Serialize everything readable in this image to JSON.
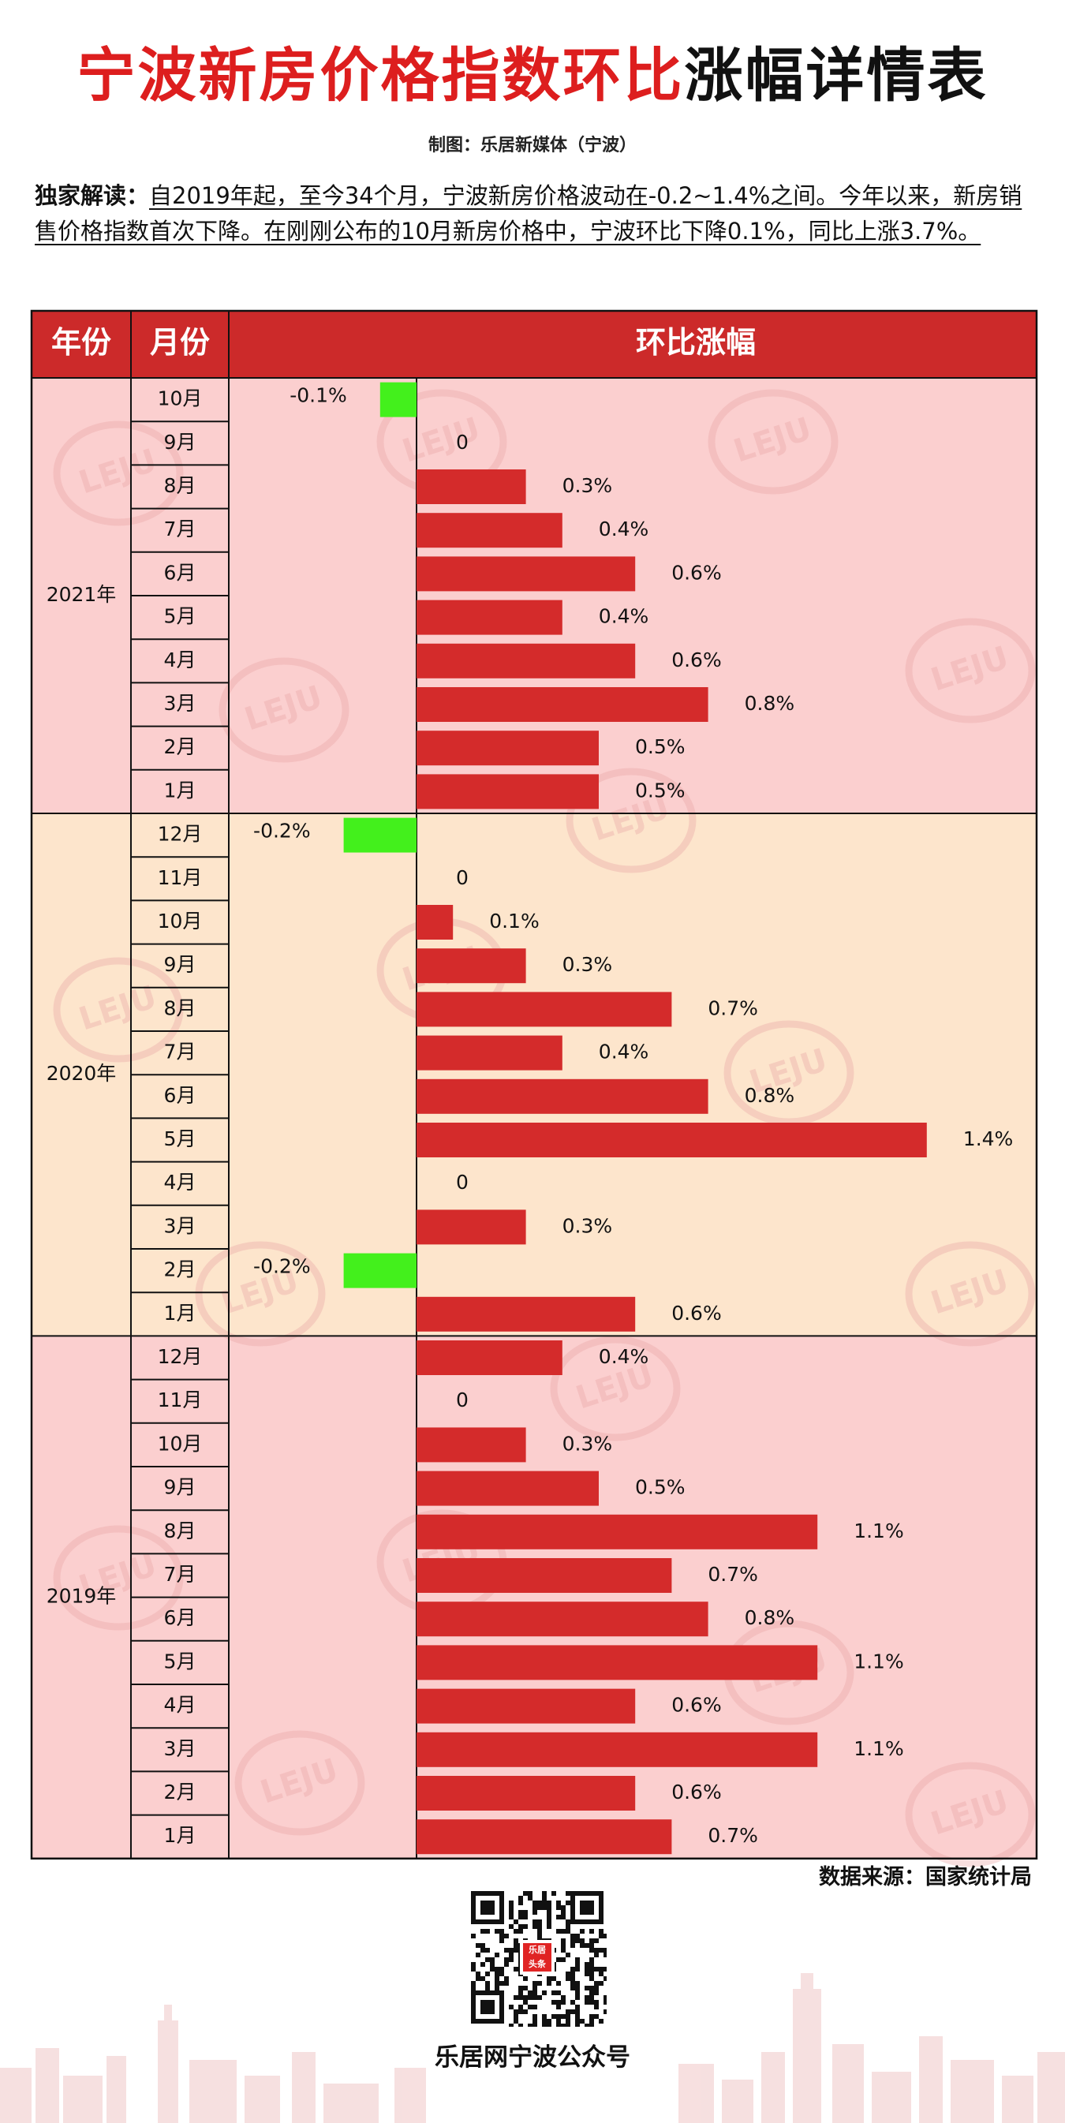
{
  "header": {
    "title_red": "宁波新房价格指数环比",
    "title_black": "涨幅详情表",
    "credit": "制图：乐居新媒体（宁波）"
  },
  "intro": {
    "label": "独家解读：",
    "text": "自2019年起，至今34个月，宁波新房价格波动在-0.2~1.4%之间。今年以来，新房销售价格指数首次下降。在刚刚公布的10月新房价格中，宁波环比下降0.1%，同比上涨3.7%。"
  },
  "colors": {
    "header_bg": "#cc2a2a",
    "bar_positive": "#d42b2b",
    "bar_negative": "#43f01c",
    "band_2021": "#fbcfcf",
    "band_2020": "#fde5cc",
    "band_2019": "#fbcfcf",
    "watermark": "#e9a3a3"
  },
  "chart_data": {
    "type": "bar",
    "orientation": "horizontal",
    "columns": [
      "年份",
      "月份",
      "环比涨幅"
    ],
    "unit": "%",
    "groups": [
      {
        "year": "2021年",
        "rows": [
          {
            "month": "10月",
            "value": -0.1,
            "label": "-0.1%"
          },
          {
            "month": "9月",
            "value": 0,
            "label": "0"
          },
          {
            "month": "8月",
            "value": 0.3,
            "label": "0.3%"
          },
          {
            "month": "7月",
            "value": 0.4,
            "label": "0.4%"
          },
          {
            "month": "6月",
            "value": 0.6,
            "label": "0.6%"
          },
          {
            "month": "5月",
            "value": 0.4,
            "label": "0.4%"
          },
          {
            "month": "4月",
            "value": 0.6,
            "label": "0.6%"
          },
          {
            "month": "3月",
            "value": 0.8,
            "label": "0.8%"
          },
          {
            "month": "2月",
            "value": 0.5,
            "label": "0.5%"
          },
          {
            "month": "1月",
            "value": 0.5,
            "label": "0.5%"
          }
        ]
      },
      {
        "year": "2020年",
        "rows": [
          {
            "month": "12月",
            "value": -0.2,
            "label": "-0.2%"
          },
          {
            "month": "11月",
            "value": 0,
            "label": "0"
          },
          {
            "month": "10月",
            "value": 0.1,
            "label": "0.1%"
          },
          {
            "month": "9月",
            "value": 0.3,
            "label": "0.3%"
          },
          {
            "month": "8月",
            "value": 0.7,
            "label": "0.7%"
          },
          {
            "month": "7月",
            "value": 0.4,
            "label": "0.4%"
          },
          {
            "month": "6月",
            "value": 0.8,
            "label": "0.8%"
          },
          {
            "month": "5月",
            "value": 1.4,
            "label": "1.4%"
          },
          {
            "month": "4月",
            "value": 0,
            "label": "0"
          },
          {
            "month": "3月",
            "value": 0.3,
            "label": "0.3%"
          },
          {
            "month": "2月",
            "value": -0.2,
            "label": "-0.2%"
          },
          {
            "month": "1月",
            "value": 0.6,
            "label": "0.6%"
          }
        ]
      },
      {
        "year": "2019年",
        "rows": [
          {
            "month": "12月",
            "value": 0.4,
            "label": "0.4%"
          },
          {
            "month": "11月",
            "value": 0,
            "label": "0"
          },
          {
            "month": "10月",
            "value": 0.3,
            "label": "0.3%"
          },
          {
            "month": "9月",
            "value": 0.5,
            "label": "0.5%"
          },
          {
            "month": "8月",
            "value": 1.1,
            "label": "1.1%"
          },
          {
            "month": "7月",
            "value": 0.7,
            "label": "0.7%"
          },
          {
            "month": "6月",
            "value": 0.8,
            "label": "0.8%"
          },
          {
            "month": "5月",
            "value": 1.1,
            "label": "1.1%"
          },
          {
            "month": "4月",
            "value": 0.6,
            "label": "0.6%"
          },
          {
            "month": "3月",
            "value": 1.1,
            "label": "1.1%"
          },
          {
            "month": "2月",
            "value": 0.6,
            "label": "0.6%"
          },
          {
            "month": "1月",
            "value": 0.7,
            "label": "0.7%"
          }
        ]
      }
    ],
    "xlim": [
      -0.2,
      1.4
    ],
    "grid": false,
    "legend": "none"
  },
  "footer": {
    "source": "数据来源：国家统计局",
    "qr_badge": "乐居\n头条",
    "account": "乐居网宁波公众号"
  }
}
